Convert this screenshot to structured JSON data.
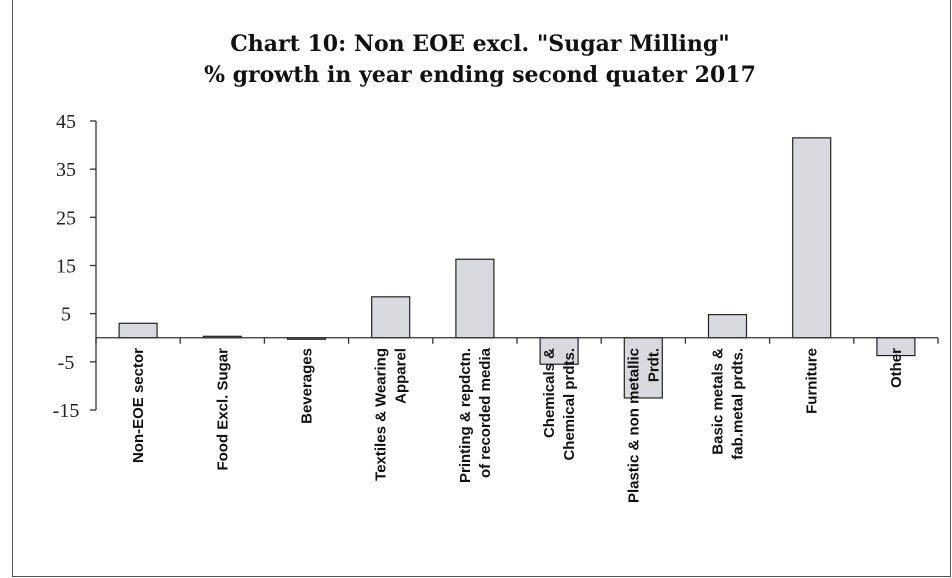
{
  "chart_data": {
    "type": "bar",
    "title": "Chart 10: Non EOE excl. \"Sugar Milling\"",
    "subtitle": "% growth in year ending second quater 2017",
    "xlabel": "",
    "ylabel": "",
    "ylim": [
      -15,
      45
    ],
    "yticks": [
      45,
      35,
      25,
      15,
      5,
      -5,
      -15
    ],
    "grid": false,
    "bar_color": "#d9d9e0",
    "categories": [
      [
        "Non-EOE sector"
      ],
      [
        "Food Excl. Sugar"
      ],
      [
        "Beverages"
      ],
      [
        "Textiles & Wearing",
        "Apparel"
      ],
      [
        "Printing & repdctn.",
        "of recorded media"
      ],
      [
        "Chemicals &",
        "Chemical prdts."
      ],
      [
        "Plastic & non metallic",
        "Prdt."
      ],
      [
        "Basic metals &",
        "fab.metal prdts."
      ],
      [
        "Furniture"
      ],
      [
        "Other"
      ]
    ],
    "values": [
      3.0,
      0.3,
      -0.3,
      8.5,
      16.3,
      -5.5,
      -12.5,
      4.8,
      41.5,
      -3.7
    ]
  }
}
